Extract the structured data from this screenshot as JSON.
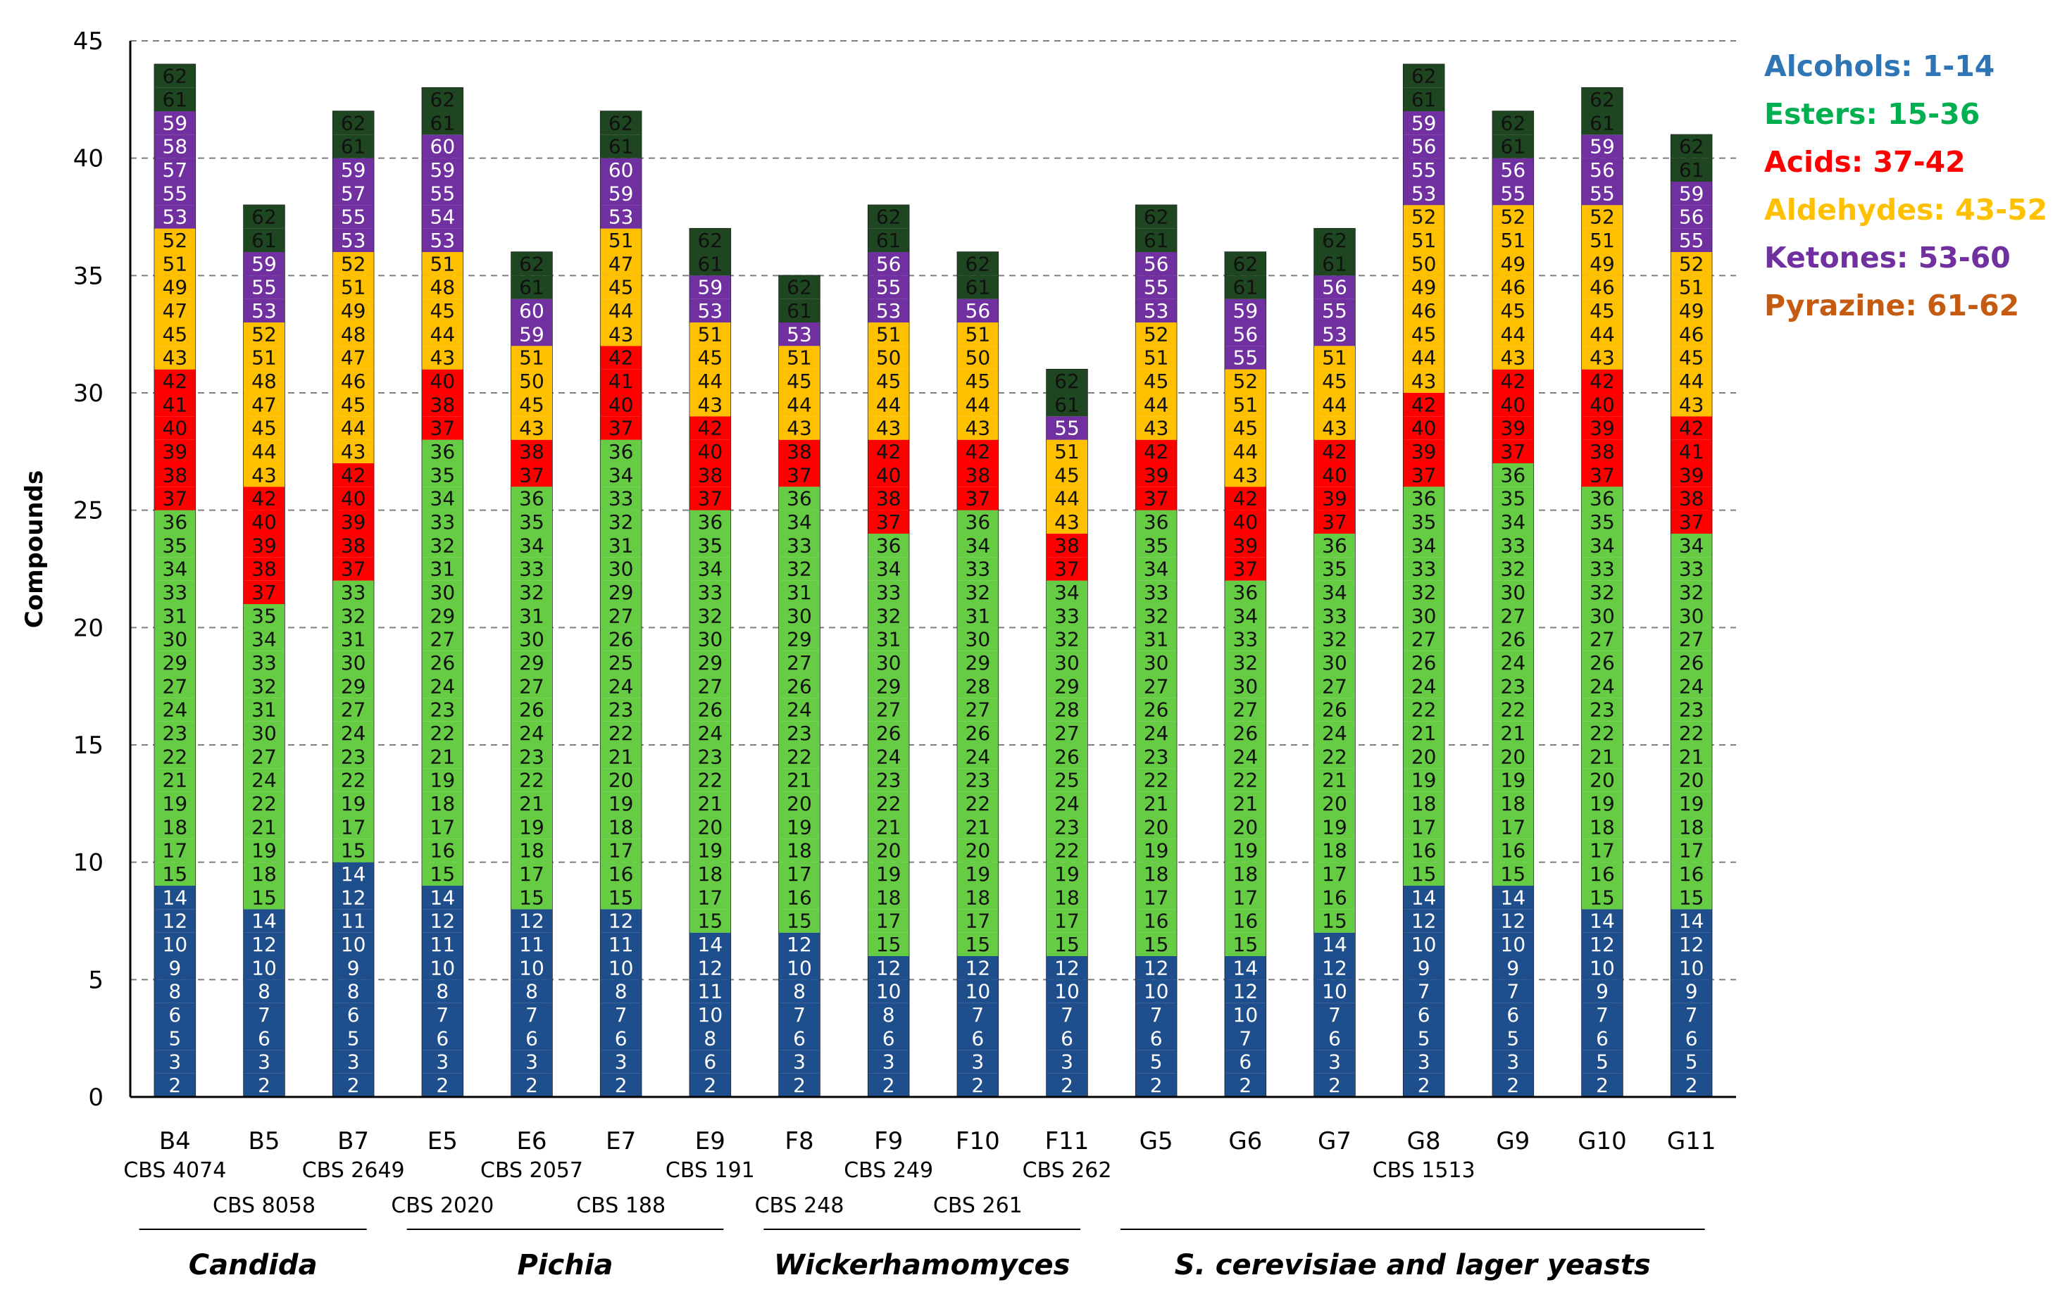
{
  "chart_data": {
    "type": "bar",
    "stacked": true,
    "ylabel": "Compounds",
    "ylim": [
      0,
      45
    ],
    "yticks": [
      0,
      5,
      10,
      15,
      20,
      25,
      30,
      35,
      40,
      45
    ],
    "grid": true,
    "legend_position": "top-right",
    "legend": [
      {
        "label": "Alcohols: 1-14",
        "color": "#2e75b6"
      },
      {
        "label": "Esters: 15-36",
        "color": "#00b050"
      },
      {
        "label": "Acids: 37-42",
        "color": "#ff0000"
      },
      {
        "label": "Aldehydes: 43-52",
        "color": "#ffc000"
      },
      {
        "label": "Ketones: 53-60",
        "color": "#7030a0"
      },
      {
        "label": "Pyrazine: 61-62",
        "color": "#c55a11"
      }
    ],
    "segment_colors": {
      "alcohols": "#1f4e8c",
      "esters": "#66cc44",
      "acids": "#ff0000",
      "aldehydes": "#ffc000",
      "ketones": "#7030a0",
      "pyrazine": "#1e4620"
    },
    "categories": [
      "B4",
      "B5",
      "B7",
      "E5",
      "E6",
      "E7",
      "E9",
      "F8",
      "F9",
      "F10",
      "F11",
      "G5",
      "G6",
      "G7",
      "G8",
      "G9",
      "G10",
      "G11"
    ],
    "totals": [
      44,
      38,
      42,
      42,
      36,
      41,
      37,
      35,
      39,
      36,
      31,
      38,
      36,
      37,
      44,
      42,
      43,
      41
    ],
    "series": [
      {
        "name": "Alcohols: 1-14",
        "values": [
          9,
          8,
          10,
          9,
          8,
          8,
          7,
          7,
          7,
          6,
          6,
          6,
          6,
          7,
          9,
          9,
          8,
          8
        ]
      },
      {
        "name": "Esters: 15-36",
        "values": [
          16,
          13,
          12,
          17,
          18,
          18,
          18,
          19,
          18,
          18,
          16,
          19,
          17,
          17,
          17,
          18,
          18,
          16
        ]
      },
      {
        "name": "Acids: 37-42",
        "values": [
          6,
          5,
          5,
          4,
          2,
          5,
          4,
          2,
          4,
          3,
          2,
          3,
          3,
          4,
          4,
          4,
          6,
          5
        ]
      },
      {
        "name": "Aldehydes: 43-52",
        "values": [
          6,
          7,
          9,
          7,
          4,
          6,
          5,
          5,
          5,
          6,
          5,
          5,
          5,
          5,
          7,
          6,
          6,
          6
        ]
      },
      {
        "name": "Ketones: 53-60",
        "values": [
          5,
          3,
          4,
          3,
          2,
          2,
          2,
          1,
          3,
          1,
          1,
          3,
          3,
          3,
          5,
          3,
          3,
          4
        ]
      },
      {
        "name": "Pyrazine: 61-62",
        "values": [
          2,
          2,
          2,
          2,
          2,
          2,
          1,
          1,
          2,
          2,
          1,
          2,
          2,
          1,
          2,
          2,
          2,
          2
        ]
      }
    ],
    "compound_ids": [
      [
        2,
        3,
        5,
        6,
        8,
        9,
        10,
        12,
        14,
        15,
        17,
        18,
        19,
        21,
        22,
        23,
        24,
        27,
        29,
        30,
        31,
        33,
        34,
        35,
        36,
        37,
        38,
        39,
        40,
        41,
        42,
        43,
        45,
        47,
        49,
        51,
        52,
        53,
        55,
        57,
        58,
        59,
        61,
        62
      ],
      [
        2,
        3,
        6,
        7,
        8,
        10,
        12,
        14,
        15,
        18,
        19,
        21,
        22,
        24,
        27,
        30,
        31,
        32,
        33,
        34,
        35,
        37,
        38,
        39,
        40,
        42,
        43,
        44,
        45,
        47,
        48,
        51,
        52,
        53,
        55,
        59,
        61,
        62
      ],
      [
        2,
        3,
        5,
        6,
        8,
        9,
        10,
        11,
        12,
        14,
        15,
        17,
        19,
        22,
        23,
        24,
        27,
        29,
        30,
        31,
        32,
        33,
        37,
        38,
        39,
        40,
        42,
        43,
        44,
        45,
        46,
        47,
        48,
        49,
        51,
        52,
        53,
        55,
        57,
        59,
        61,
        62
      ],
      [
        2,
        3,
        6,
        7,
        8,
        10,
        11,
        12,
        14,
        15,
        16,
        17,
        18,
        19,
        21,
        22,
        23,
        24,
        26,
        27,
        29,
        30,
        31,
        32,
        33,
        34,
        35,
        36,
        37,
        38,
        40,
        43,
        44,
        45,
        48,
        51,
        53,
        54,
        55,
        59,
        60,
        61,
        62
      ],
      [
        2,
        3,
        6,
        7,
        8,
        10,
        11,
        12,
        15,
        17,
        18,
        19,
        21,
        22,
        23,
        24,
        26,
        27,
        29,
        30,
        31,
        32,
        33,
        34,
        35,
        36,
        37,
        38,
        43,
        45,
        50,
        51,
        59,
        60,
        61,
        62
      ],
      [
        2,
        3,
        6,
        7,
        8,
        10,
        11,
        12,
        15,
        16,
        17,
        18,
        19,
        20,
        21,
        22,
        23,
        24,
        25,
        26,
        27,
        29,
        30,
        31,
        32,
        33,
        34,
        36,
        37,
        40,
        41,
        42,
        43,
        44,
        45,
        47,
        51,
        53,
        59,
        60,
        61,
        62
      ],
      [
        2,
        6,
        8,
        10,
        11,
        12,
        14,
        15,
        17,
        18,
        19,
        20,
        21,
        22,
        23,
        24,
        26,
        27,
        29,
        30,
        32,
        33,
        34,
        35,
        36,
        37,
        38,
        40,
        42,
        43,
        44,
        45,
        51,
        53,
        59,
        61,
        62
      ],
      [
        2,
        3,
        6,
        7,
        8,
        10,
        12,
        15,
        16,
        17,
        18,
        19,
        20,
        21,
        22,
        23,
        24,
        26,
        27,
        29,
        30,
        31,
        32,
        33,
        34,
        36,
        37,
        38,
        43,
        44,
        45,
        51,
        53,
        61,
        62
      ],
      [
        2,
        3,
        6,
        8,
        10,
        12,
        15,
        17,
        18,
        19,
        20,
        21,
        22,
        23,
        24,
        26,
        27,
        29,
        30,
        31,
        32,
        33,
        34,
        36,
        37,
        38,
        40,
        42,
        43,
        44,
        45,
        50,
        51,
        53,
        55,
        56,
        61,
        62
      ],
      [
        2,
        3,
        6,
        7,
        10,
        12,
        15,
        17,
        18,
        19,
        20,
        21,
        22,
        23,
        24,
        26,
        27,
        28,
        29,
        30,
        31,
        32,
        33,
        34,
        36,
        37,
        38,
        42,
        43,
        44,
        45,
        50,
        51,
        56,
        61,
        62
      ],
      [
        2,
        3,
        6,
        7,
        10,
        12,
        15,
        17,
        18,
        19,
        22,
        23,
        24,
        25,
        26,
        27,
        28,
        29,
        30,
        32,
        33,
        34,
        37,
        38,
        43,
        44,
        45,
        51,
        55,
        61,
        62
      ],
      [
        2,
        5,
        6,
        7,
        10,
        12,
        15,
        16,
        17,
        18,
        19,
        20,
        21,
        22,
        23,
        24,
        26,
        27,
        30,
        31,
        32,
        33,
        34,
        35,
        36,
        37,
        39,
        42,
        43,
        44,
        45,
        51,
        52,
        53,
        55,
        56,
        61,
        62
      ],
      [
        2,
        6,
        7,
        10,
        12,
        14,
        15,
        16,
        17,
        18,
        19,
        20,
        21,
        22,
        24,
        26,
        27,
        30,
        32,
        33,
        34,
        36,
        37,
        39,
        40,
        42,
        43,
        44,
        45,
        51,
        52,
        55,
        56,
        59,
        61,
        62
      ],
      [
        2,
        3,
        6,
        7,
        10,
        12,
        14,
        15,
        16,
        17,
        18,
        19,
        20,
        21,
        22,
        24,
        26,
        27,
        30,
        32,
        33,
        34,
        35,
        36,
        37,
        39,
        40,
        42,
        43,
        44,
        45,
        51,
        53,
        55,
        56,
        61,
        62
      ],
      [
        2,
        3,
        5,
        6,
        7,
        9,
        10,
        12,
        14,
        15,
        16,
        17,
        18,
        19,
        20,
        21,
        22,
        24,
        26,
        27,
        30,
        32,
        33,
        34,
        35,
        36,
        37,
        39,
        40,
        42,
        43,
        44,
        45,
        46,
        49,
        50,
        51,
        52,
        53,
        55,
        56,
        59,
        61,
        62
      ],
      [
        2,
        3,
        5,
        6,
        7,
        9,
        10,
        12,
        14,
        15,
        16,
        17,
        18,
        19,
        20,
        21,
        22,
        23,
        24,
        26,
        27,
        30,
        32,
        33,
        34,
        35,
        36,
        37,
        39,
        40,
        42,
        43,
        44,
        45,
        46,
        49,
        51,
        52,
        55,
        56,
        61,
        62
      ],
      [
        2,
        5,
        6,
        7,
        9,
        10,
        12,
        14,
        15,
        16,
        17,
        18,
        19,
        20,
        21,
        22,
        23,
        24,
        26,
        27,
        30,
        32,
        33,
        34,
        35,
        36,
        37,
        38,
        39,
        40,
        42,
        43,
        44,
        45,
        46,
        49,
        51,
        52,
        55,
        56,
        59,
        61,
        62
      ],
      [
        2,
        5,
        6,
        7,
        9,
        10,
        12,
        14,
        15,
        16,
        17,
        18,
        19,
        20,
        21,
        22,
        23,
        24,
        26,
        27,
        30,
        32,
        33,
        34,
        37,
        38,
        39,
        41,
        42,
        43,
        44,
        45,
        46,
        49,
        51,
        52,
        55,
        56,
        59,
        61,
        62
      ]
    ],
    "strain_labels": [
      {
        "text": "CBS 4074",
        "under": 0,
        "row": 1
      },
      {
        "text": "CBS 8058",
        "under": 1,
        "row": 2
      },
      {
        "text": "CBS 2649",
        "under": 2,
        "row": 1
      },
      {
        "text": "CBS 2020",
        "under": 3,
        "row": 2
      },
      {
        "text": "CBS 2057",
        "under": 4,
        "row": 1
      },
      {
        "text": "CBS 188",
        "under": 5,
        "row": 2
      },
      {
        "text": "CBS 191",
        "under": 6,
        "row": 1
      },
      {
        "text": "CBS 248",
        "under": 7,
        "row": 2
      },
      {
        "text": "CBS 249",
        "under": 8,
        "row": 1
      },
      {
        "text": "CBS 261",
        "under": 9,
        "row": 2
      },
      {
        "text": "CBS 262",
        "under": 10,
        "row": 1
      },
      {
        "text": "CBS 1513",
        "under": 14,
        "row": 1
      }
    ],
    "groups": [
      {
        "label": "Candida",
        "from": 0,
        "to": 2
      },
      {
        "label": "Pichia",
        "from": 3,
        "to": 6
      },
      {
        "label": "Wickerhamomyces",
        "from": 7,
        "to": 10
      },
      {
        "label": "S. cerevisiae and lager yeasts",
        "from": 11,
        "to": 17
      }
    ]
  }
}
